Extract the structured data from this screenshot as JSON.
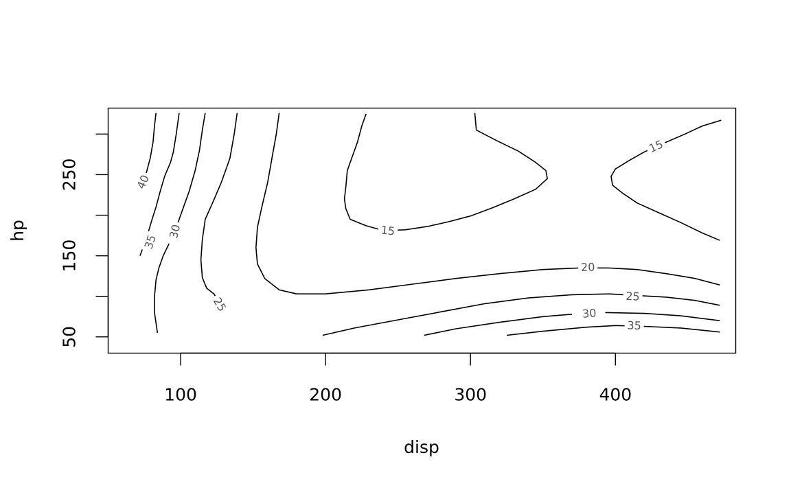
{
  "chart_data": {
    "type": "contour",
    "title": "",
    "xlabel": "disp",
    "ylabel": "hp",
    "xlim": [
      50,
      483
    ],
    "ylim": [
      30,
      332
    ],
    "x_ticks": [
      100,
      200,
      300,
      400
    ],
    "x_tick_labels": [
      "100",
      "200",
      "300",
      "400"
    ],
    "y_ticks": [
      50,
      100,
      150,
      200,
      250,
      300
    ],
    "y_tick_labels": [
      "50",
      "",
      "150",
      "",
      "250",
      ""
    ],
    "grid": false,
    "levels": [
      {
        "level": 15,
        "label": "15",
        "lines": [
          {
            "points": [
              [
                228,
                325
              ],
              [
                225,
                310
              ],
              [
                222,
                290
              ],
              [
                218,
                270
              ],
              [
                215,
                255
              ],
              [
                214,
                235
              ],
              [
                213,
                220
              ],
              [
                214,
                208
              ],
              [
                217,
                195
              ],
              [
                228,
                187
              ],
              [
                240,
                181
              ],
              [
                255,
                182
              ],
              [
                270,
                186
              ],
              [
                285,
                192
              ],
              [
                300,
                199
              ],
              [
                315,
                209
              ],
              [
                330,
                220
              ],
              [
                345,
                232
              ],
              [
                353,
                245
              ],
              [
                352,
                255
              ],
              [
                345,
                265
              ],
              [
                333,
                279
              ],
              [
                318,
                292
              ],
              [
                304,
                305
              ],
              [
                303,
                326
              ]
            ],
            "label_at": [
              243,
              181
            ]
          },
          {
            "points": [
              [
                473,
                317
              ],
              [
                460,
                310
              ],
              [
                448,
                300
              ],
              [
                435,
                290
              ],
              [
                420,
                278
              ],
              [
                410,
                268
              ],
              [
                400,
                257
              ],
              [
                397,
                248
              ],
              [
                398,
                237
              ],
              [
                405,
                227
              ],
              [
                415,
                215
              ],
              [
                430,
                203
              ],
              [
                445,
                191
              ],
              [
                460,
                178
              ],
              [
                472,
                169
              ]
            ],
            "label_at": [
              428,
              285
            ]
          }
        ]
      },
      {
        "level": 20,
        "label": "20",
        "lines": [
          {
            "points": [
              [
                168,
                326
              ],
              [
                166,
                300
              ],
              [
                163,
                270
              ],
              [
                160,
                240
              ],
              [
                156,
                210
              ],
              [
                153,
                185
              ],
              [
                152,
                160
              ],
              [
                153,
                140
              ],
              [
                158,
                122
              ],
              [
                168,
                108
              ],
              [
                180,
                103
              ],
              [
                200,
                103
              ],
              [
                230,
                108
              ],
              [
                260,
                115
              ],
              [
                290,
                122
              ],
              [
                320,
                128
              ],
              [
                350,
                133
              ],
              [
                375,
                135
              ],
              [
                395,
                135
              ],
              [
                415,
                133
              ],
              [
                435,
                128
              ],
              [
                455,
                122
              ],
              [
                472,
                114
              ]
            ],
            "label_at": [
              381,
              136
            ]
          }
        ]
      },
      {
        "level": 25,
        "label": "25",
        "lines": [
          {
            "points": [
              [
                139,
                326
              ],
              [
                137,
                300
              ],
              [
                134,
                270
              ],
              [
                128,
                240
              ],
              [
                122,
                215
              ],
              [
                117,
                195
              ],
              [
                115,
                170
              ],
              [
                114,
                145
              ],
              [
                115,
                123
              ],
              [
                118,
                110
              ],
              [
                123,
                103
              ],
              [
                125,
                97
              ]
            ],
            "label_at": [
              127,
              90
            ]
          },
          {
            "points": [
              [
                198,
                52
              ],
              [
                220,
                61
              ],
              [
                250,
                71
              ],
              [
                280,
                81
              ],
              [
                310,
                91
              ],
              [
                340,
                98
              ],
              [
                370,
                102
              ],
              [
                396,
                103
              ],
              [
                415,
                101
              ],
              [
                435,
                99
              ],
              [
                455,
                95
              ],
              [
                472,
                89
              ]
            ],
            "label_at": [
              412,
              100
            ]
          }
        ]
      },
      {
        "level": 30,
        "label": "30",
        "lines": [
          {
            "points": [
              [
                117,
                326
              ],
              [
                115,
                305
              ],
              [
                113,
                280
              ],
              [
                110,
                255
              ],
              [
                106,
                230
              ],
              [
                102,
                210
              ],
              [
                98,
                190
              ],
              [
                96,
                175
              ]
            ],
            "label_at": [
              96,
              180
            ]
          },
          {
            "points": [
              [
                92,
                165
              ],
              [
                88,
                150
              ],
              [
                85,
                135
              ],
              [
                83,
                120
              ],
              [
                82,
                100
              ],
              [
                82,
                80
              ],
              [
                84,
                55
              ]
            ],
            "label_at": null
          },
          {
            "points": [
              [
                268,
                52
              ],
              [
                290,
                60
              ],
              [
                320,
                68
              ],
              [
                350,
                75
              ],
              [
                370,
                78
              ]
            ],
            "label_at": [
              382,
              79
            ]
          },
          {
            "points": [
              [
                393,
                80
              ],
              [
                420,
                79
              ],
              [
                445,
                76
              ],
              [
                472,
                70
              ]
            ],
            "label_at": null
          }
        ]
      },
      {
        "level": 35,
        "label": "35",
        "lines": [
          {
            "points": [
              [
                99,
                326
              ],
              [
                97,
                300
              ],
              [
                95,
                278
              ],
              [
                93,
                265
              ],
              [
                89,
                248
              ],
              [
                86,
                230
              ],
              [
                83,
                210
              ],
              [
                80,
                193
              ],
              [
                77,
                175
              ],
              [
                74,
                160
              ],
              [
                72,
                150
              ]
            ],
            "label_at": [
              79,
              167
            ]
          },
          {
            "points": [
              [
                325,
                52
              ],
              [
                350,
                57
              ],
              [
                380,
                62
              ],
              [
                400,
                64
              ],
              [
                420,
                63
              ],
              [
                445,
                61
              ],
              [
                472,
                56
              ]
            ],
            "label_at": [
              413,
              64
            ]
          }
        ]
      },
      {
        "level": 40,
        "label": "40",
        "lines": [
          {
            "points": [
              [
                83,
                326
              ],
              [
                82,
                310
              ],
              [
                81,
                290
              ],
              [
                79,
                270
              ],
              [
                76,
                250
              ],
              [
                74,
                242
              ]
            ],
            "label_at": [
              74,
              241
            ]
          }
        ]
      }
    ]
  }
}
